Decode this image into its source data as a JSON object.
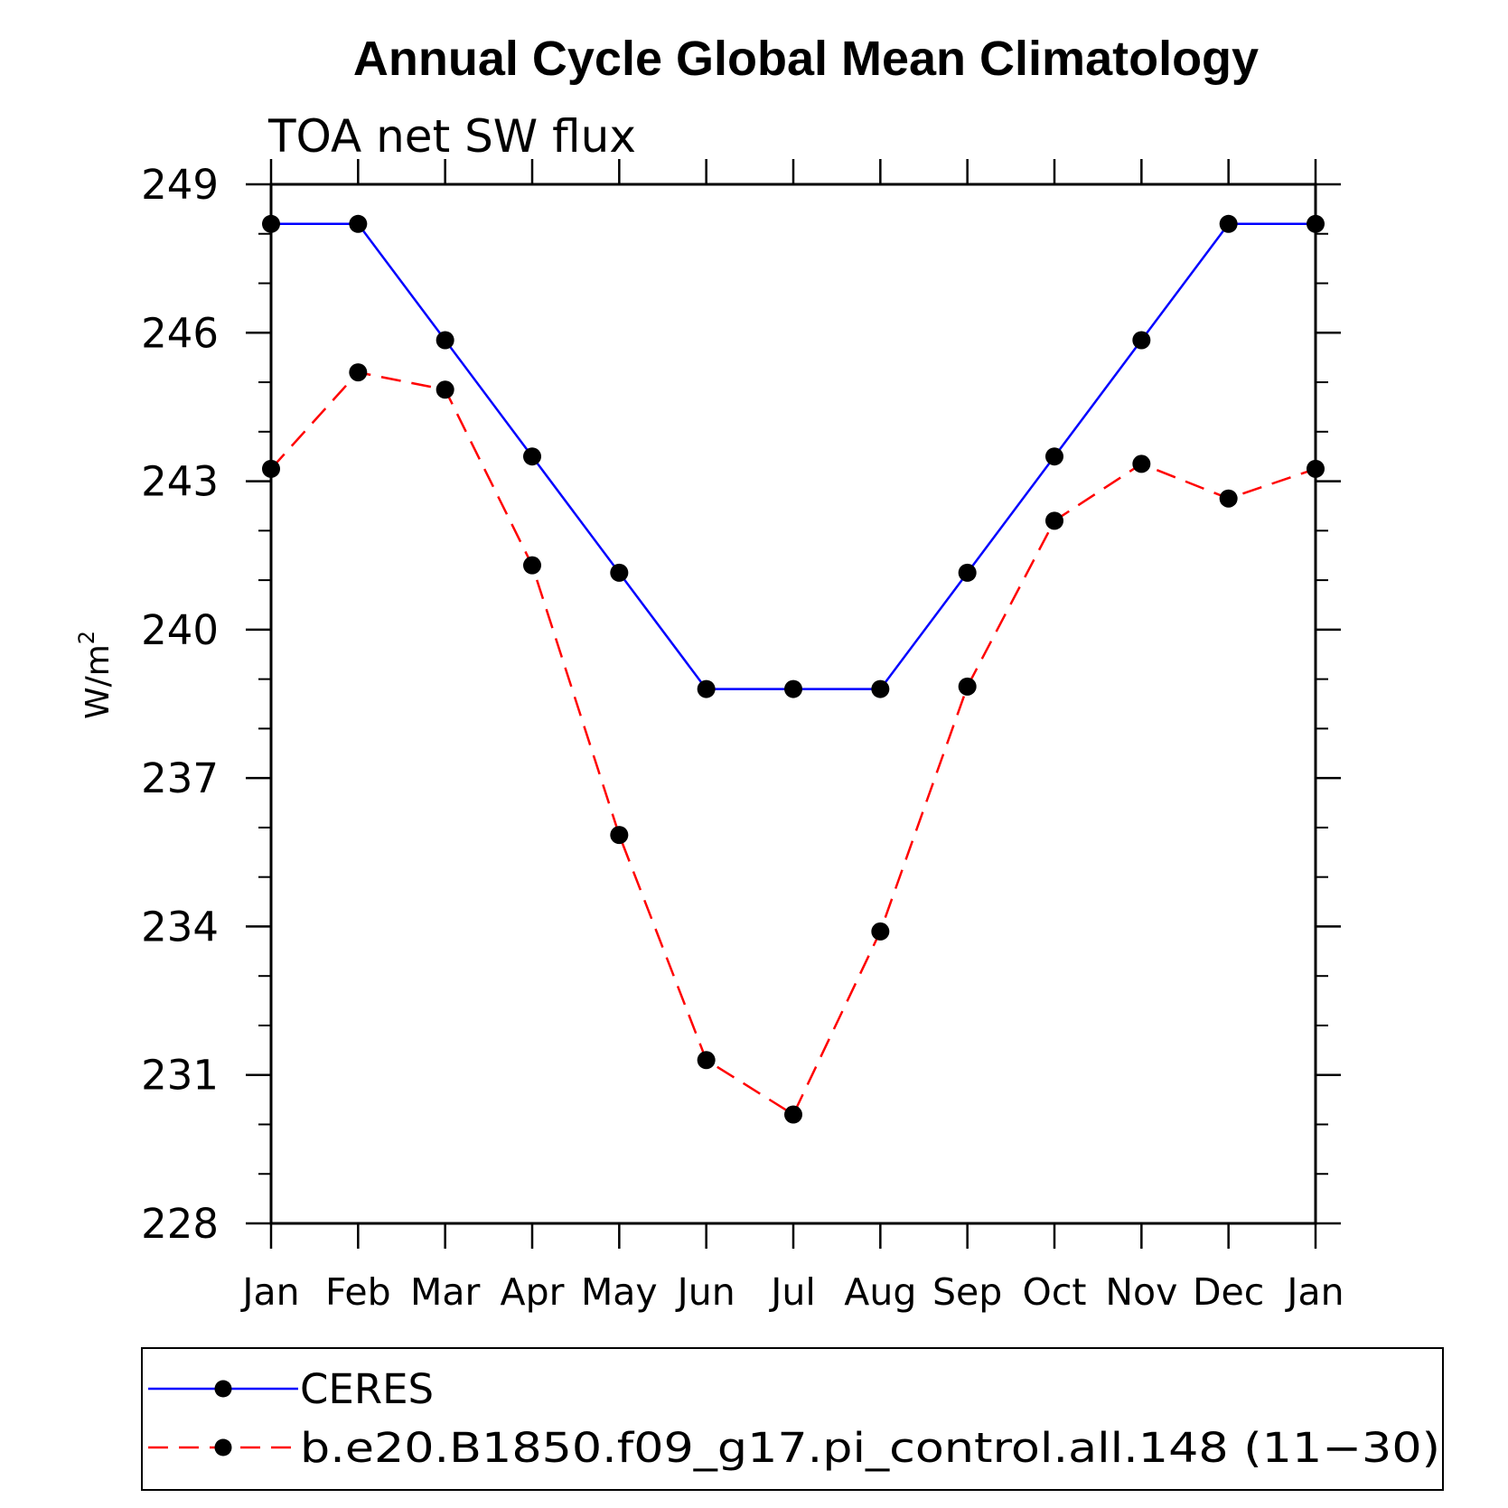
{
  "chart_data": {
    "type": "line",
    "title": "Annual Cycle Global Mean Climatology",
    "subtitle": "TOA net SW flux",
    "ylabel": "W/m",
    "ylabel_superscript": "2",
    "xlabel": "",
    "categories": [
      "Jan",
      "Feb",
      "Mar",
      "Apr",
      "May",
      "Jun",
      "Jul",
      "Aug",
      "Sep",
      "Oct",
      "Nov",
      "Dec",
      "Jan"
    ],
    "ylim": [
      228,
      249
    ],
    "yticks": [
      228,
      231,
      234,
      237,
      240,
      243,
      246,
      249
    ],
    "series": [
      {
        "name": "CERES",
        "color": "#0000ff",
        "dash": "solid",
        "values": [
          248.2,
          248.2,
          245.85,
          243.5,
          241.15,
          238.8,
          238.8,
          238.8,
          241.15,
          243.5,
          245.85,
          248.2,
          248.2
        ]
      },
      {
        "name": "b.e20.B1850.f09_g17.pi_control.all.148 (11-30)",
        "color": "#ff0000",
        "dash": "dashed",
        "values": [
          243.25,
          245.2,
          244.85,
          241.3,
          235.85,
          231.3,
          230.2,
          233.9,
          238.85,
          242.2,
          243.35,
          242.65,
          243.25
        ]
      }
    ],
    "legend": {
      "position": "bottom",
      "entries": [
        "CERES",
        "b.e20.B1850.f09_g17.pi_control.all.148 (11−30)"
      ]
    },
    "grid": false
  }
}
